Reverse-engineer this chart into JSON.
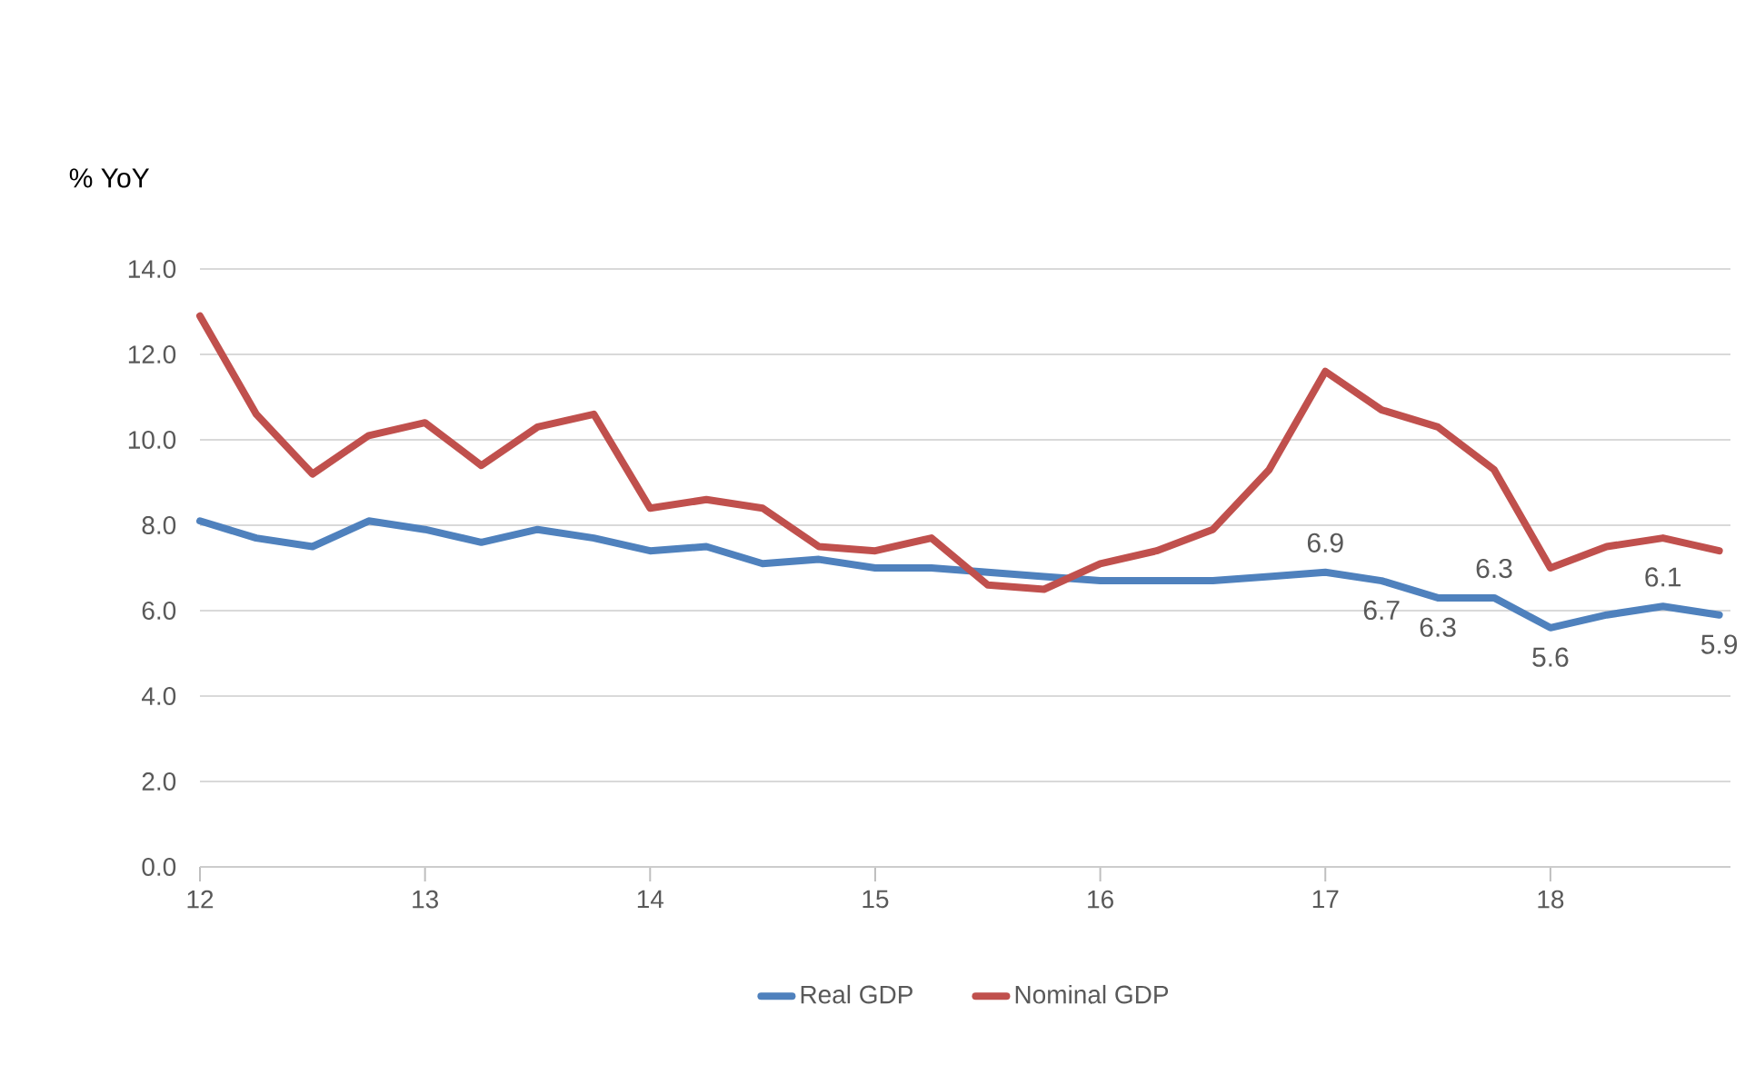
{
  "chart_data": {
    "type": "line",
    "ylabel": "% YoY",
    "x": [
      12,
      12.25,
      12.5,
      12.75,
      13,
      13.25,
      13.5,
      13.75,
      14,
      14.25,
      14.5,
      14.75,
      15,
      15.25,
      15.5,
      15.75,
      16,
      16.25,
      16.5,
      16.75,
      17,
      17.25,
      17.5,
      17.75,
      18,
      18.25,
      18.5,
      18.75
    ],
    "series": [
      {
        "name": "Real GDP",
        "color": "#4f81bd",
        "values": [
          8.1,
          7.7,
          7.5,
          8.1,
          7.9,
          7.6,
          7.9,
          7.7,
          7.4,
          7.5,
          7.1,
          7.2,
          7.0,
          7.0,
          6.9,
          6.8,
          6.7,
          6.7,
          6.7,
          6.8,
          6.9,
          6.7,
          6.3,
          6.3,
          5.6,
          5.9,
          6.1,
          5.9
        ],
        "value_labels": [
          null,
          null,
          null,
          null,
          null,
          null,
          null,
          null,
          null,
          null,
          null,
          null,
          null,
          null,
          null,
          null,
          null,
          null,
          null,
          null,
          "6.9",
          "6.7",
          "6.3",
          "6.3",
          "5.6",
          null,
          "6.1",
          "5.9"
        ]
      },
      {
        "name": "Nominal GDP",
        "color": "#c0504d",
        "values": [
          12.9,
          10.6,
          9.2,
          10.1,
          10.4,
          9.4,
          10.3,
          10.6,
          8.4,
          8.6,
          8.4,
          7.5,
          7.4,
          7.7,
          6.6,
          6.5,
          7.1,
          7.4,
          7.9,
          9.3,
          11.6,
          10.7,
          10.3,
          9.3,
          7.0,
          7.5,
          7.7,
          7.4
        ]
      }
    ],
    "xlim": [
      12,
      18.8
    ],
    "xticks": [
      12,
      13,
      14,
      15,
      16,
      17,
      18
    ],
    "ylim": [
      0,
      14
    ],
    "yticks": [
      {
        "value": 0,
        "label": "0.0"
      },
      {
        "value": 2,
        "label": "2.0"
      },
      {
        "value": 4,
        "label": "4.0"
      },
      {
        "value": 6,
        "label": "6.0"
      },
      {
        "value": 8,
        "label": "8.0"
      },
      {
        "value": 10,
        "label": "10.0"
      },
      {
        "value": 12,
        "label": "12.0"
      },
      {
        "value": 14,
        "label": "14.0"
      }
    ],
    "grid": "y",
    "legend": "bottom"
  }
}
